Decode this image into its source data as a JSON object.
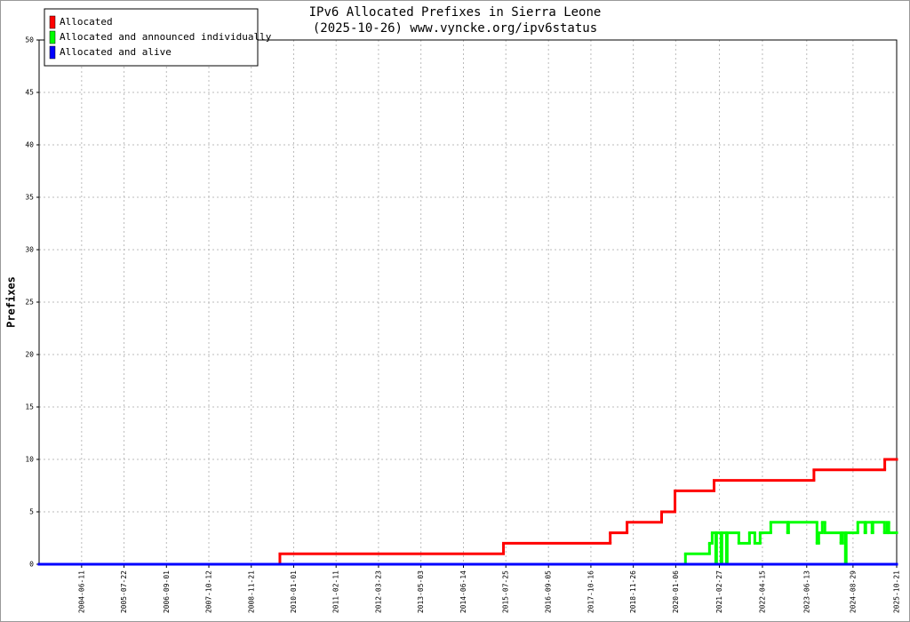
{
  "chart_data": {
    "type": "line",
    "step": true,
    "title": "IPv6 Allocated Prefixes in Sierra Leone",
    "subtitle": "(2025-10-26) www.vyncke.org/ipv6status",
    "y_label": "Prefixes",
    "xlim": [
      "2003-05-01",
      "2025-10-21"
    ],
    "xticks": [
      "2004-06-11",
      "2005-07-22",
      "2006-09-01",
      "2007-10-12",
      "2008-11-21",
      "2010-01-01",
      "2011-02-11",
      "2012-03-23",
      "2013-05-03",
      "2014-06-14",
      "2015-07-25",
      "2016-09-05",
      "2017-10-16",
      "2018-11-26",
      "2020-01-06",
      "2021-02-27",
      "2022-04-15",
      "2023-06-13",
      "2024-08-29",
      "2025-10-21"
    ],
    "ylim": [
      0,
      50
    ],
    "yticks": [
      0,
      5,
      10,
      15,
      20,
      25,
      30,
      35,
      40,
      45,
      50
    ],
    "grid": true,
    "legend": "top-left",
    "series": [
      {
        "name": "Allocated",
        "color": "#ff0000",
        "x": [
          "2003-05-01",
          "2009-08-22",
          "2015-07-02",
          "2018-04-19",
          "2018-09-27",
          "2019-08-24",
          "2019-12-30",
          "2021-01-07",
          "2023-08-21",
          "2025-06-29"
        ],
        "values": [
          0,
          1,
          2,
          3,
          4,
          5,
          7,
          8,
          9,
          10
        ]
      },
      {
        "name": "Allocated and announced individually",
        "color": "#00ff00",
        "x": [
          "2003-05-01",
          "2020-04-08",
          "2020-11-24",
          "2020-12-20",
          "2021-01-23",
          "2021-01-31",
          "2021-03-15",
          "2021-03-23",
          "2021-05-05",
          "2021-05-13",
          "2021-09-01",
          "2021-12-12",
          "2022-02-01",
          "2022-03-24",
          "2022-07-04",
          "2022-12-12",
          "2022-12-21",
          "2023-09-19",
          "2023-10-06",
          "2023-11-09",
          "2023-12-04",
          "2024-05-05",
          "2024-05-22",
          "2024-06-17",
          "2024-06-25",
          "2024-10-14",
          "2024-12-21",
          "2024-12-29",
          "2025-02-27",
          "2025-03-07",
          "2025-06-26",
          "2025-07-21",
          "2025-08-07"
        ],
        "values": [
          0,
          1,
          2,
          3,
          0,
          3,
          0,
          3,
          0,
          3,
          2,
          3,
          2,
          3,
          4,
          3,
          4,
          2,
          3,
          4,
          3,
          2,
          3,
          0,
          3,
          4,
          3,
          4,
          3,
          4,
          3,
          4,
          3
        ]
      },
      {
        "name": "Allocated and alive",
        "color": "#0000ff",
        "x": [
          "2003-05-01"
        ],
        "values": [
          0
        ]
      }
    ]
  }
}
